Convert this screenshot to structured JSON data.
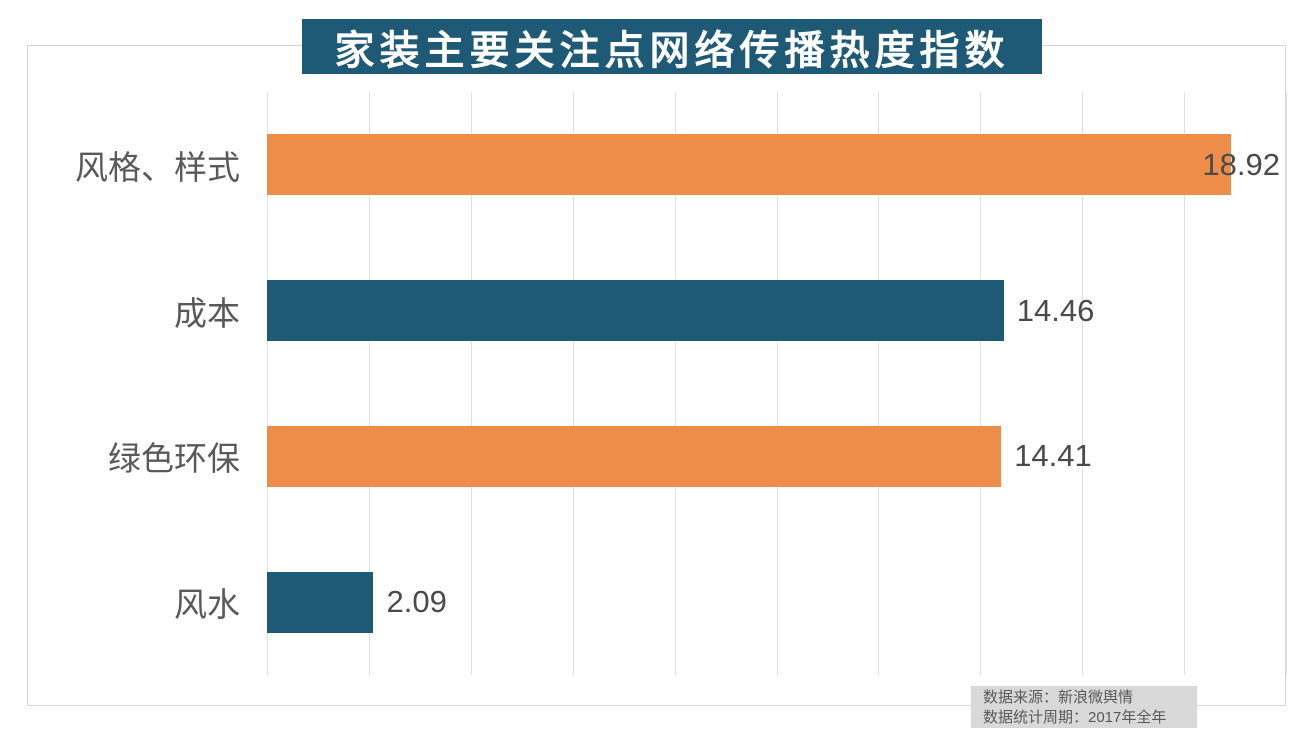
{
  "chart_data": {
    "type": "bar",
    "orientation": "horizontal",
    "title": "家装主要关注点网络传播热度指数",
    "categories": [
      "风格、样式",
      "成本",
      "绿色环保",
      "风水"
    ],
    "values": [
      18.92,
      14.46,
      14.41,
      2.09
    ],
    "value_labels": [
      "18.92",
      "14.46",
      "14.41",
      "2.09"
    ],
    "xlim": [
      0,
      20
    ],
    "gridline_interval": 2,
    "grid": "vertical-only",
    "legend": "none",
    "axis_tick_labels": "none",
    "bar_colors_by_row": [
      "#ee8c4a",
      "#1e5a76",
      "#ee8c4a",
      "#1e5a76"
    ]
  },
  "title_banner": {
    "bg_color": "#1e5a76",
    "text_color": "#ffffff"
  },
  "footer": {
    "source_line1": "数据来源：新浪微舆情",
    "source_line2": "数据统计周期：2017年全年",
    "bg_color": "#d9d9d9"
  }
}
